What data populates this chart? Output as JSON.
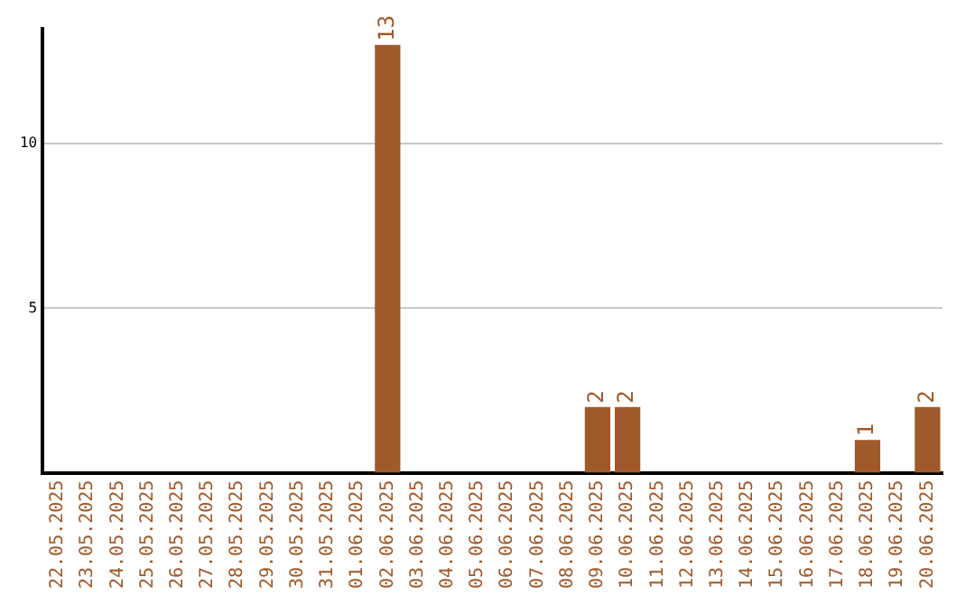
{
  "chart_data": {
    "type": "bar",
    "categories": [
      "22.05.2025",
      "23.05.2025",
      "24.05.2025",
      "25.05.2025",
      "26.05.2025",
      "27.05.2025",
      "28.05.2025",
      "29.05.2025",
      "30.05.2025",
      "31.05.2025",
      "01.06.2025",
      "02.06.2025",
      "03.06.2025",
      "04.06.2025",
      "05.06.2025",
      "06.06.2025",
      "07.06.2025",
      "08.06.2025",
      "09.06.2025",
      "10.06.2025",
      "11.06.2025",
      "12.06.2025",
      "13.06.2025",
      "14.06.2025",
      "15.06.2025",
      "16.06.2025",
      "17.06.2025",
      "18.06.2025",
      "19.06.2025",
      "20.06.2025"
    ],
    "values": [
      0,
      0,
      0,
      0,
      0,
      0,
      0,
      0,
      0,
      0,
      0,
      13,
      0,
      0,
      0,
      0,
      0,
      0,
      2,
      2,
      0,
      0,
      0,
      0,
      0,
      0,
      0,
      1,
      0,
      2
    ],
    "value_labels": [
      null,
      null,
      null,
      null,
      null,
      null,
      null,
      null,
      null,
      null,
      null,
      "13",
      null,
      null,
      null,
      null,
      null,
      null,
      "2",
      "2",
      null,
      null,
      null,
      null,
      null,
      null,
      null,
      "1",
      null,
      "2"
    ],
    "color": "#a0592a",
    "ylim": [
      0,
      13.5
    ],
    "yticks": [
      5,
      10
    ],
    "grid": "y",
    "legend": false
  }
}
